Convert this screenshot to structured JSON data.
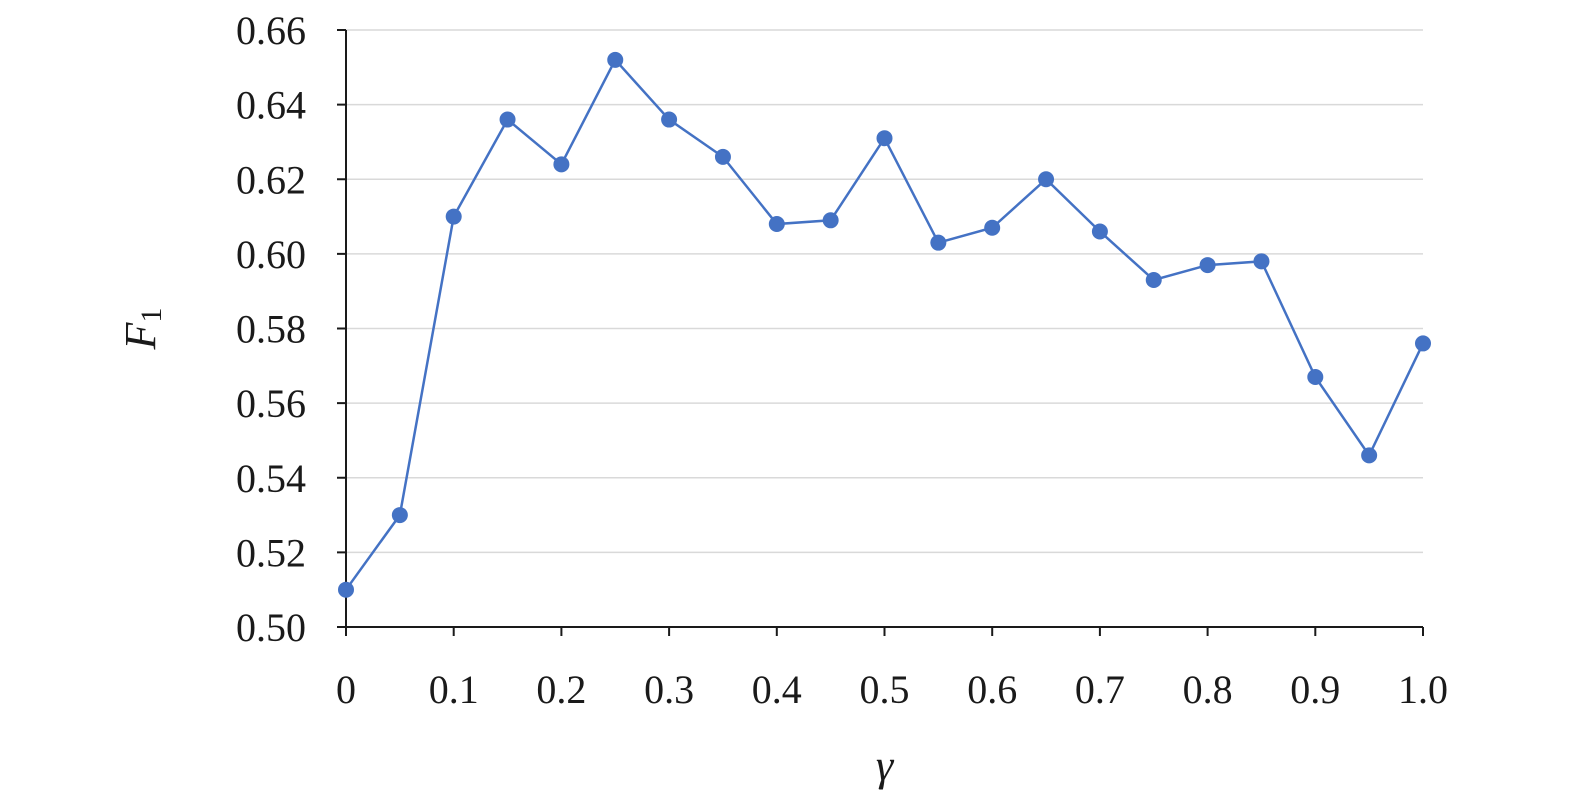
{
  "chart_data": {
    "type": "line",
    "title": "",
    "xlabel": "γ",
    "ylabel": {
      "main": "F",
      "subscript": "1"
    },
    "x": [
      0,
      0.05,
      0.1,
      0.15,
      0.2,
      0.25,
      0.3,
      0.35,
      0.4,
      0.45,
      0.5,
      0.55,
      0.6,
      0.65,
      0.7,
      0.75,
      0.8,
      0.85,
      0.9,
      0.95,
      1.0
    ],
    "series": [
      {
        "values": [
          0.51,
          0.53,
          0.61,
          0.636,
          0.624,
          0.652,
          0.636,
          0.626,
          0.608,
          0.609,
          0.631,
          0.603,
          0.607,
          0.62,
          0.606,
          0.593,
          0.597,
          0.598,
          0.567,
          0.546,
          0.576
        ],
        "color": "#4472c4"
      }
    ],
    "xlim": [
      0,
      1.0
    ],
    "ylim": [
      0.5,
      0.66
    ],
    "x_ticks": [
      0,
      0.1,
      0.2,
      0.3,
      0.4,
      0.5,
      0.6,
      0.7,
      0.8,
      0.9,
      1.0
    ],
    "x_tick_labels": [
      "0",
      "0.1",
      "0.2",
      "0.3",
      "0.4",
      "0.5",
      "0.6",
      "0.7",
      "0.8",
      "0.9",
      "1.0"
    ],
    "y_ticks": [
      0.5,
      0.52,
      0.54,
      0.56,
      0.58,
      0.6,
      0.62,
      0.64,
      0.66
    ],
    "y_tick_labels": [
      "0.50",
      "0.52",
      "0.54",
      "0.56",
      "0.58",
      "0.60",
      "0.62",
      "0.64",
      "0.66"
    ],
    "grid": "horizontal",
    "legend": "none"
  }
}
